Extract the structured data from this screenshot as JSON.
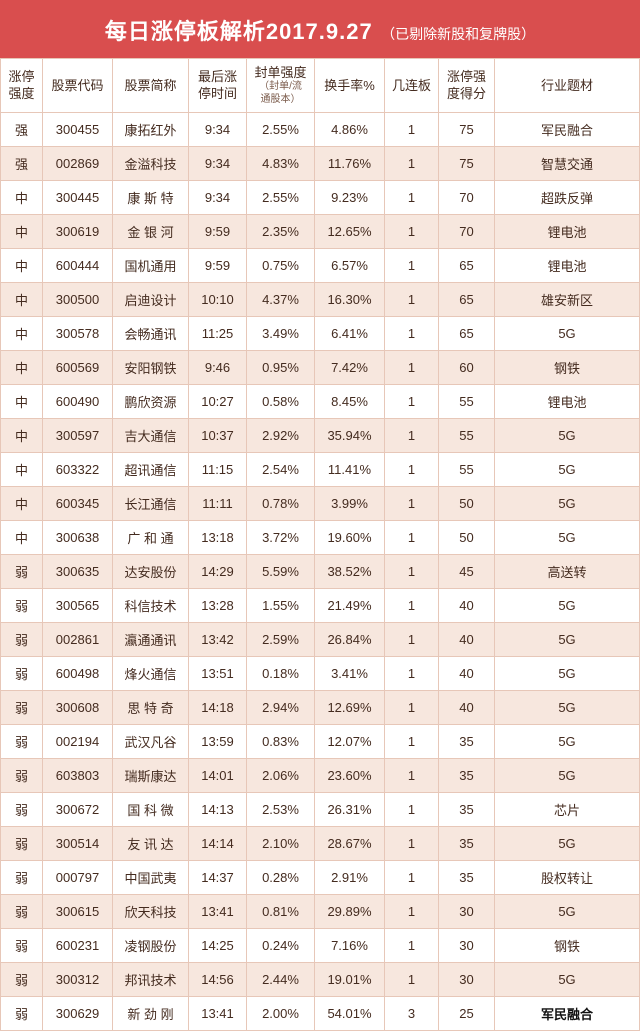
{
  "header": {
    "title_main": "每日涨停板解析2017.9.27",
    "title_sub": "（已剔除新股和复牌股）"
  },
  "table": {
    "columns": [
      {
        "label": "涨停\n强度",
        "sub": ""
      },
      {
        "label": "股票代码",
        "sub": ""
      },
      {
        "label": "股票简称",
        "sub": ""
      },
      {
        "label": "最后涨\n停时间",
        "sub": ""
      },
      {
        "label": "封单强度",
        "sub": "（封单/流\n通股本）"
      },
      {
        "label": "换手率%",
        "sub": ""
      },
      {
        "label": "几连板",
        "sub": ""
      },
      {
        "label": "涨停强\n度得分",
        "sub": ""
      },
      {
        "label": "行业题材",
        "sub": ""
      }
    ],
    "rows": [
      [
        "强",
        "300455",
        "康拓红外",
        "9:34",
        "2.55%",
        "4.86%",
        "1",
        "75",
        "军民融合"
      ],
      [
        "强",
        "002869",
        "金溢科技",
        "9:34",
        "4.83%",
        "11.76%",
        "1",
        "75",
        "智慧交通"
      ],
      [
        "中",
        "300445",
        "康 斯 特",
        "9:34",
        "2.55%",
        "9.23%",
        "1",
        "70",
        "超跌反弹"
      ],
      [
        "中",
        "300619",
        "金 银 河",
        "9:59",
        "2.35%",
        "12.65%",
        "1",
        "70",
        "锂电池"
      ],
      [
        "中",
        "600444",
        "国机通用",
        "9:59",
        "0.75%",
        "6.57%",
        "1",
        "65",
        "锂电池"
      ],
      [
        "中",
        "300500",
        "启迪设计",
        "10:10",
        "4.37%",
        "16.30%",
        "1",
        "65",
        "雄安新区"
      ],
      [
        "中",
        "300578",
        "会畅通讯",
        "11:25",
        "3.49%",
        "6.41%",
        "1",
        "65",
        "5G"
      ],
      [
        "中",
        "600569",
        "安阳钢铁",
        "9:46",
        "0.95%",
        "7.42%",
        "1",
        "60",
        "钢铁"
      ],
      [
        "中",
        "600490",
        "鹏欣资源",
        "10:27",
        "0.58%",
        "8.45%",
        "1",
        "55",
        "锂电池"
      ],
      [
        "中",
        "300597",
        "吉大通信",
        "10:37",
        "2.92%",
        "35.94%",
        "1",
        "55",
        "5G"
      ],
      [
        "中",
        "603322",
        "超讯通信",
        "11:15",
        "2.54%",
        "11.41%",
        "1",
        "55",
        "5G"
      ],
      [
        "中",
        "600345",
        "长江通信",
        "11:11",
        "0.78%",
        "3.99%",
        "1",
        "50",
        "5G"
      ],
      [
        "中",
        "300638",
        "广 和 通",
        "13:18",
        "3.72%",
        "19.60%",
        "1",
        "50",
        "5G"
      ],
      [
        "弱",
        "300635",
        "达安股份",
        "14:29",
        "5.59%",
        "38.52%",
        "1",
        "45",
        "高送转"
      ],
      [
        "弱",
        "300565",
        "科信技术",
        "13:28",
        "1.55%",
        "21.49%",
        "1",
        "40",
        "5G"
      ],
      [
        "弱",
        "002861",
        "瀛通通讯",
        "13:42",
        "2.59%",
        "26.84%",
        "1",
        "40",
        "5G"
      ],
      [
        "弱",
        "600498",
        "烽火通信",
        "13:51",
        "0.18%",
        "3.41%",
        "1",
        "40",
        "5G"
      ],
      [
        "弱",
        "300608",
        "思 特 奇",
        "14:18",
        "2.94%",
        "12.69%",
        "1",
        "40",
        "5G"
      ],
      [
        "弱",
        "002194",
        "武汉凡谷",
        "13:59",
        "0.83%",
        "12.07%",
        "1",
        "35",
        "5G"
      ],
      [
        "弱",
        "603803",
        "瑞斯康达",
        "14:01",
        "2.06%",
        "23.60%",
        "1",
        "35",
        "5G"
      ],
      [
        "弱",
        "300672",
        "国 科 微",
        "14:13",
        "2.53%",
        "26.31%",
        "1",
        "35",
        "芯片"
      ],
      [
        "弱",
        "300514",
        "友 讯 达",
        "14:14",
        "2.10%",
        "28.67%",
        "1",
        "35",
        "5G"
      ],
      [
        "弱",
        "000797",
        "中国武夷",
        "14:37",
        "0.28%",
        "2.91%",
        "1",
        "35",
        "股权转让"
      ],
      [
        "弱",
        "300615",
        "欣天科技",
        "13:41",
        "0.81%",
        "29.89%",
        "1",
        "30",
        "5G"
      ],
      [
        "弱",
        "600231",
        "凌钢股份",
        "14:25",
        "0.24%",
        "7.16%",
        "1",
        "30",
        "钢铁"
      ],
      [
        "弱",
        "300312",
        "邦讯技术",
        "14:56",
        "2.44%",
        "19.01%",
        "1",
        "30",
        "5G"
      ],
      [
        "弱",
        "300629",
        "新 劲 刚",
        "13:41",
        "2.00%",
        "54.01%",
        "3",
        "25",
        "军民融合"
      ]
    ],
    "last_row_bold_theme": true,
    "colors": {
      "header_bg": "#d94e4e",
      "border": "#e7c7b8",
      "row_alt_bg": "#f7e7de",
      "text": "#442b1f"
    }
  }
}
